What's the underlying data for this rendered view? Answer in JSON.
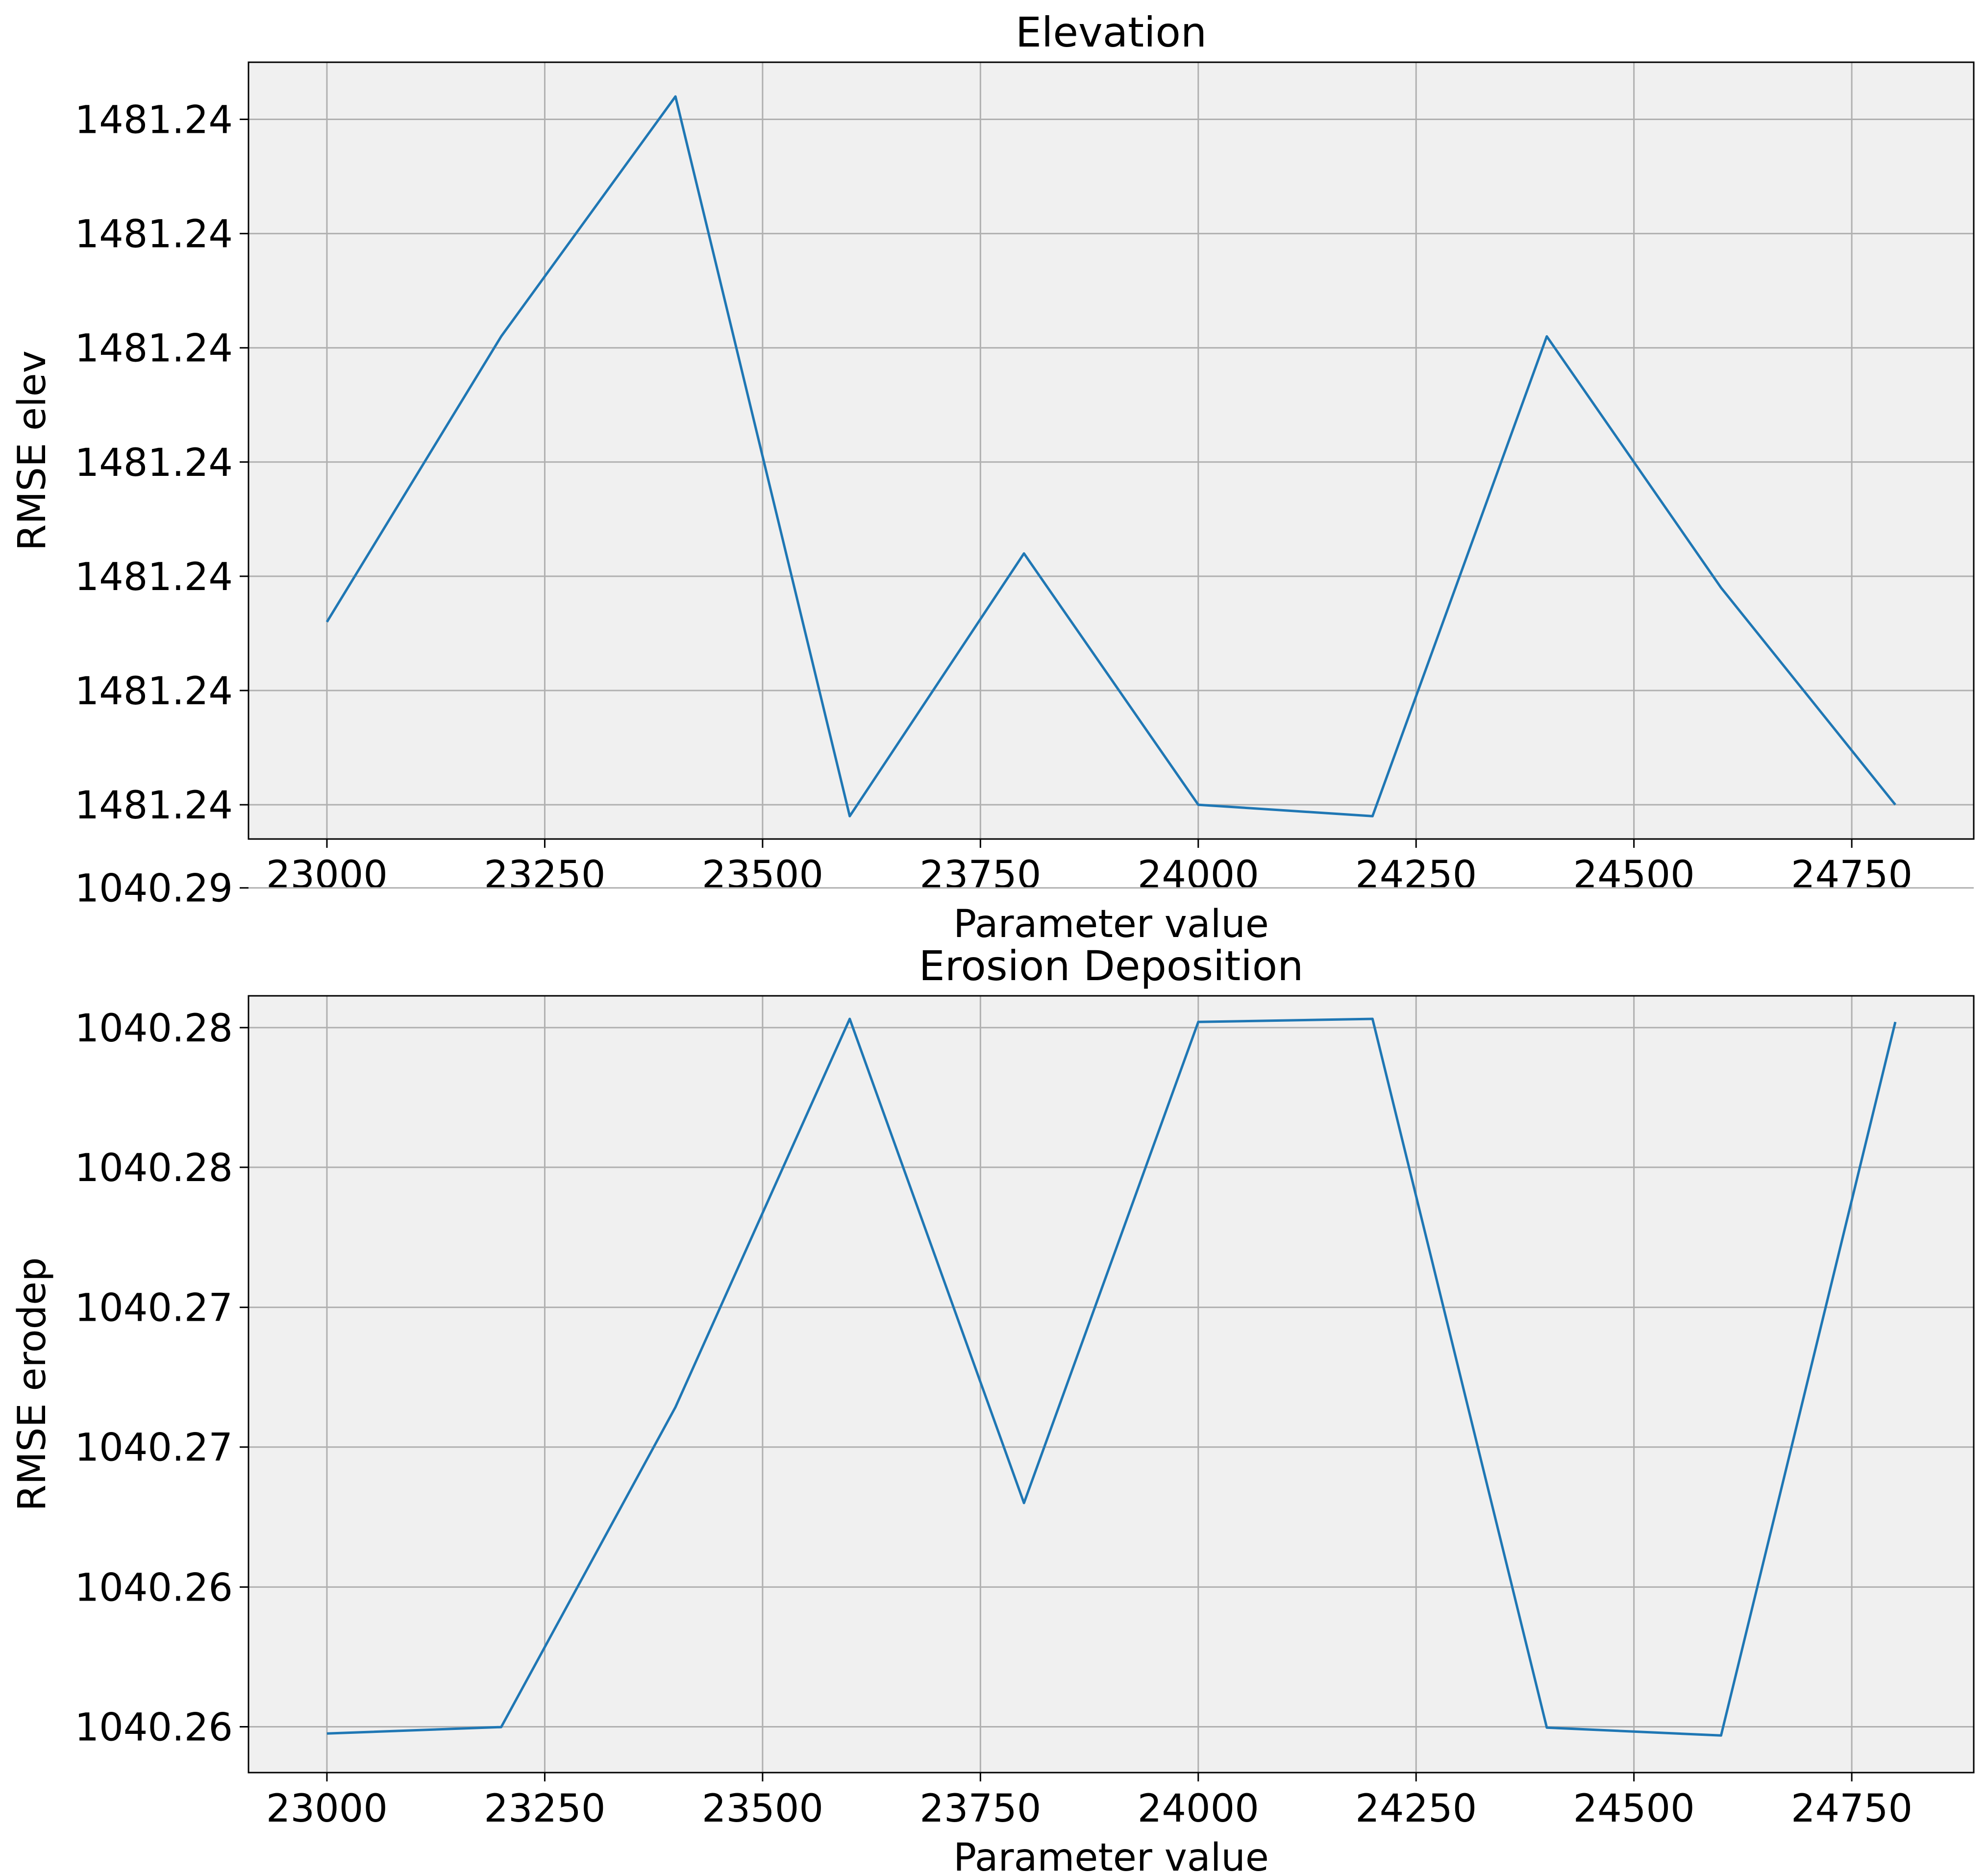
{
  "chart_data": [
    {
      "type": "line",
      "title": "Elevation",
      "xlabel": "Parameter value",
      "ylabel": "RMSE elev",
      "x": [
        23000,
        23200,
        23400,
        23600,
        23800,
        24000,
        24200,
        24400,
        24600,
        24800
      ],
      "series": [
        {
          "values": [
            1481.2396,
            1481.23985,
            1481.24006,
            1481.23943,
            1481.23966,
            1481.23944,
            1481.23943,
            1481.23985,
            1481.23963,
            1481.23944
          ]
        }
      ],
      "xlim": [
        22910,
        24890
      ],
      "ylim": [
        1481.23941,
        1481.24009
      ],
      "xticks": [
        23000,
        23250,
        23500,
        23750,
        24000,
        24250,
        24500,
        24750
      ],
      "xtick_labels": [
        "23000",
        "23250",
        "23500",
        "23750",
        "24000",
        "24250",
        "24500",
        "24750"
      ],
      "yticks": [
        1481.23944,
        1481.23954,
        1481.23964,
        1481.23974,
        1481.23984,
        1481.23994,
        1481.24004
      ],
      "ytick_labels": [
        "1481.24",
        "1481.24",
        "1481.24",
        "1481.24",
        "1481.24",
        "1481.24",
        "1481.24"
      ],
      "grid": true,
      "colors": {
        "line": "#1f77b4",
        "background": "#f0f0f0",
        "grid": "#b0b0b0"
      }
    },
    {
      "type": "line",
      "title": "Erosion Deposition",
      "xlabel": "Parameter value",
      "ylabel": "RMSE erodep",
      "x": [
        23000,
        23200,
        23400,
        23600,
        23800,
        24000,
        24200,
        24400,
        24600,
        24800
      ],
      "series": [
        {
          "values": [
            1040.25862,
            1040.25885,
            1040.27023,
            1040.28404,
            1040.26682,
            1040.28393,
            1040.28404,
            1040.25883,
            1040.25855,
            1040.28393
          ]
        }
      ],
      "xlim": [
        22910,
        24890
      ],
      "ylim": [
        1040.25723,
        1040.28486
      ],
      "xticks": [
        23000,
        23250,
        23500,
        23750,
        24000,
        24250,
        24500,
        24750
      ],
      "xtick_labels": [
        "23000",
        "23250",
        "23500",
        "23750",
        "24000",
        "24250",
        "24500",
        "24750"
      ],
      "yticks": [
        1040.25886,
        1040.26383,
        1040.26881,
        1040.27378,
        1040.27876,
        1040.28373,
        1040.2887
      ],
      "ytick_labels": [
        "1040.26",
        "1040.26",
        "1040.27",
        "1040.27",
        "1040.28",
        "1040.28",
        "1040.29"
      ],
      "grid": true,
      "colors": {
        "line": "#1f77b4",
        "background": "#f0f0f0",
        "grid": "#b0b0b0"
      }
    }
  ]
}
